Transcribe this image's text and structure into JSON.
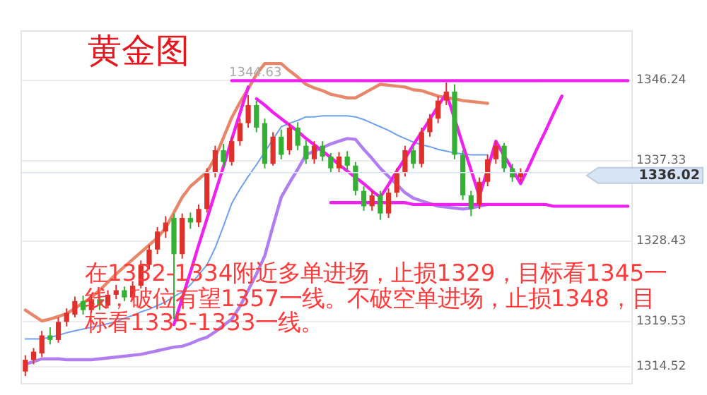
{
  "chart_data": {
    "type": "candlestick",
    "title": "黄金图",
    "categories": [
      null,
      null,
      null,
      null,
      null,
      null,
      null,
      null,
      null,
      null,
      null,
      null,
      null,
      null,
      null,
      null,
      null,
      null,
      null,
      null,
      null,
      null,
      null,
      null,
      null,
      null,
      null,
      null,
      null,
      null,
      null,
      null,
      null,
      null,
      null,
      null,
      null,
      null,
      null,
      null,
      null,
      null,
      null,
      null,
      null,
      null,
      null,
      null,
      null,
      null,
      null,
      null,
      null,
      null,
      null,
      null,
      null,
      null,
      null,
      null,
      null,
      null,
      null,
      null,
      null,
      null,
      null,
      null,
      null,
      null,
      null,
      null,
      null,
      null
    ],
    "ohlc": [
      [
        1314.0,
        1315.8,
        1313.5,
        1315.3
      ],
      [
        1315.3,
        1316.6,
        1314.8,
        1316.2
      ],
      [
        1316.0,
        1318.5,
        1315.6,
        1318.0
      ],
      [
        1318.0,
        1318.9,
        1317.0,
        1317.5
      ],
      [
        1317.5,
        1320.0,
        1317.2,
        1319.5
      ],
      [
        1319.5,
        1321.0,
        1319.0,
        1320.5
      ],
      [
        1320.3,
        1322.3,
        1320.0,
        1321.8
      ],
      [
        1321.8,
        1322.4,
        1320.3,
        1320.8
      ],
      [
        1320.8,
        1322.5,
        1320.5,
        1322.0
      ],
      [
        1322.0,
        1322.6,
        1320.8,
        1321.3
      ],
      [
        1321.3,
        1323.0,
        1321.0,
        1322.5
      ],
      [
        1322.5,
        1323.6,
        1322.0,
        1323.0
      ],
      [
        1323.0,
        1323.4,
        1321.8,
        1322.2
      ],
      [
        1322.2,
        1324.0,
        1321.9,
        1323.5
      ],
      [
        1323.5,
        1326.3,
        1323.2,
        1325.8
      ],
      [
        1325.8,
        1328.0,
        1325.3,
        1327.5
      ],
      [
        1327.5,
        1330.0,
        1327.0,
        1329.5
      ],
      [
        1329.5,
        1331.2,
        1328.8,
        1330.5
      ],
      [
        1331.0,
        1331.5,
        1319.8,
        1327.0
      ],
      [
        1327.0,
        1331.5,
        1326.5,
        1331.0
      ],
      [
        1331.0,
        1331.6,
        1329.8,
        1330.5
      ],
      [
        1330.5,
        1332.5,
        1330.0,
        1332.0
      ],
      [
        1332.0,
        1336.5,
        1331.6,
        1336.0
      ],
      [
        1336.0,
        1339.0,
        1335.5,
        1338.5
      ],
      [
        1338.5,
        1339.2,
        1336.6,
        1337.2
      ],
      [
        1337.2,
        1340.0,
        1336.8,
        1339.5
      ],
      [
        1339.5,
        1342.0,
        1339.0,
        1341.5
      ],
      [
        1341.5,
        1344.6,
        1341.0,
        1343.5
      ],
      [
        1343.5,
        1344.0,
        1340.5,
        1341.0
      ],
      [
        1341.5,
        1342.0,
        1336.5,
        1337.0
      ],
      [
        1337.0,
        1340.5,
        1336.8,
        1340.0
      ],
      [
        1340.0,
        1340.8,
        1337.5,
        1338.0
      ],
      [
        1338.5,
        1341.5,
        1338.0,
        1341.0
      ],
      [
        1341.0,
        1341.6,
        1338.5,
        1339.0
      ],
      [
        1339.0,
        1339.6,
        1337.0,
        1337.5
      ],
      [
        1337.5,
        1339.5,
        1337.0,
        1339.0
      ],
      [
        1339.0,
        1339.5,
        1337.3,
        1337.8
      ],
      [
        1337.8,
        1338.2,
        1336.0,
        1336.5
      ],
      [
        1336.5,
        1338.3,
        1336.0,
        1337.8
      ],
      [
        1337.8,
        1338.4,
        1336.3,
        1336.8
      ],
      [
        1336.8,
        1337.2,
        1333.5,
        1334.0
      ],
      [
        1334.0,
        1334.5,
        1331.8,
        1332.3
      ],
      [
        1332.3,
        1334.0,
        1331.8,
        1333.5
      ],
      [
        1333.5,
        1334.0,
        1330.8,
        1331.5
      ],
      [
        1331.5,
        1334.3,
        1331.0,
        1333.8
      ],
      [
        1333.8,
        1336.5,
        1333.3,
        1336.0
      ],
      [
        1336.0,
        1339.0,
        1335.6,
        1338.5
      ],
      [
        1338.5,
        1339.0,
        1336.5,
        1337.0
      ],
      [
        1337.0,
        1341.0,
        1336.6,
        1340.5
      ],
      [
        1340.5,
        1342.5,
        1340.0,
        1342.0
      ],
      [
        1342.0,
        1344.5,
        1341.5,
        1344.0
      ],
      [
        1344.0,
        1346.0,
        1343.5,
        1345.0
      ],
      [
        1345.0,
        1345.8,
        1337.5,
        1338.0
      ],
      [
        1338.0,
        1338.5,
        1333.0,
        1333.5
      ],
      [
        1333.5,
        1334.0,
        1331.2,
        1332.0
      ],
      [
        1332.5,
        1335.5,
        1332.0,
        1335.0
      ],
      [
        1335.0,
        1338.0,
        1334.5,
        1337.5
      ],
      [
        1337.5,
        1339.5,
        1337.0,
        1339.0
      ],
      [
        1339.0,
        1339.3,
        1336.0,
        1336.5
      ],
      [
        1336.5,
        1337.0,
        1335.0,
        1335.5
      ],
      [
        1335.5,
        1336.5,
        1335.0,
        1336.0
      ],
      null,
      null,
      null,
      null,
      null,
      null,
      null,
      null,
      null,
      null,
      null,
      null,
      null
    ],
    "colors": [
      "#e0302c",
      "#e0302c",
      "#e0302c",
      "#34b034",
      "#e0302c",
      "#e0302c",
      "#e0302c",
      "#34b034",
      "#e0302c",
      "#34b034",
      "#e0302c",
      "#e0302c",
      "#34b034",
      "#e0302c",
      "#e0302c",
      "#e0302c",
      "#e0302c",
      "#e0302c",
      "#34b034",
      "#e0302c",
      "#34b034",
      "#e0302c",
      "#e0302c",
      "#e0302c",
      "#34b034",
      "#e0302c",
      "#e0302c",
      "#e0302c",
      "#34b034",
      "#34b034",
      "#e0302c",
      "#34b034",
      "#e0302c",
      "#34b034",
      "#34b034",
      "#e0302c",
      "#34b034",
      "#34b034",
      "#e0302c",
      "#34b034",
      "#34b034",
      "#34b034",
      "#e0302c",
      "#34b034",
      "#e0302c",
      "#e0302c",
      "#e0302c",
      "#34b034",
      "#e0302c",
      "#e0302c",
      "#e0302c",
      "#e0302c",
      "#34b034",
      "#34b034",
      "#34b034",
      "#e0302c",
      "#e0302c",
      "#e0302c",
      "#34b034",
      "#34b034",
      "#e0302c",
      null,
      null,
      null,
      null,
      null,
      null,
      null,
      null,
      null,
      null,
      null,
      null,
      null
    ],
    "series": [
      {
        "type": "line",
        "color": "#6fa0f0",
        "values": [
          1317.6,
          1317.6,
          1317.6,
          1317.8,
          1318.0,
          1318.3,
          1318.5,
          1318.7,
          1318.9,
          1319.1,
          1319.3,
          1319.5,
          1319.9,
          1320.2,
          1320.6,
          1320.9,
          1321.3,
          1321.7,
          1322.3,
          1322.8,
          1323.6,
          1324.7,
          1325.8,
          1327.7,
          1330.1,
          1332.6,
          1334.2,
          1335.6,
          1336.9,
          1338.3,
          1339.7,
          1341.1,
          1341.5,
          1341.8,
          1342.2,
          1342.2,
          1342.3,
          1342.3,
          1342.3,
          1342.3,
          1342.2,
          1341.9,
          1341.5,
          1341.1,
          1340.7,
          1340.2,
          1339.8,
          1339.4,
          1339.1,
          1338.9,
          1338.6,
          1338.4,
          1338.2,
          1338.1,
          1338.0,
          1338.0,
          1338.0,
          null,
          null,
          null,
          null,
          null,
          null,
          null,
          null,
          null,
          null,
          null,
          null,
          null,
          null,
          null,
          null,
          null
        ]
      },
      {
        "type": "line",
        "color": "#e8866a",
        "values": [
          1320.8,
          1320.2,
          1319.6,
          1319.8,
          1320.1,
          1320.4,
          1321.0,
          1321.6,
          1322.2,
          1323.0,
          1323.9,
          1324.8,
          1325.6,
          1326.4,
          1327.2,
          1328.0,
          1328.8,
          1329.9,
          1331.6,
          1333.3,
          1334.5,
          1335.3,
          1336.1,
          1337.7,
          1339.9,
          1342.1,
          1343.8,
          1345.3,
          1346.9,
          1348.1,
          1348.1,
          1348.1,
          1347.3,
          1346.6,
          1345.8,
          1345.4,
          1345.1,
          1344.7,
          1344.5,
          1344.3,
          1344.3,
          1344.8,
          1345.3,
          1345.8,
          1345.7,
          1345.6,
          1345.5,
          1345.2,
          1345.1,
          1344.8,
          1344.5,
          1344.3,
          1344.2,
          1344.0,
          1343.9,
          1343.8,
          1343.7,
          null,
          null,
          null,
          null,
          null,
          null,
          null,
          null,
          null,
          null,
          null,
          null,
          null,
          null,
          null,
          null,
          null
        ]
      },
      {
        "type": "line",
        "color": "#b07ef0",
        "values": [
          1314.8,
          1315.1,
          1315.4,
          1315.4,
          1315.4,
          1315.3,
          1315.3,
          1315.3,
          1315.3,
          1315.4,
          1315.5,
          1315.6,
          1315.7,
          1315.8,
          1315.9,
          1316.1,
          1316.3,
          1316.5,
          1316.7,
          1316.8,
          1317.1,
          1317.5,
          1317.8,
          1318.4,
          1319.1,
          1319.8,
          1321.2,
          1323.0,
          1324.8,
          1326.8,
          1330.1,
          1333.3,
          1334.9,
          1336.4,
          1338.0,
          1338.4,
          1338.8,
          1339.2,
          1339.5,
          1339.8,
          1339.7,
          1338.6,
          1337.6,
          1336.5,
          1335.6,
          1334.7,
          1333.8,
          1333.2,
          1332.9,
          1332.6,
          1332.3,
          1332.2,
          1332.1,
          1332.0,
          1332.1,
          1332.3,
          1332.5,
          null,
          null,
          null,
          null,
          null,
          null,
          null,
          null,
          null,
          null,
          null,
          null,
          null,
          null,
          null,
          null,
          null
        ]
      },
      {
        "type": "line",
        "color": "#f020f0",
        "values": [
          null,
          null,
          null,
          null,
          null,
          null,
          null,
          null,
          null,
          null,
          null,
          null,
          null,
          null,
          null,
          null,
          null,
          null,
          1319.2,
          1322.1,
          1325.0,
          1328.0,
          1330.9,
          1333.8,
          1336.7,
          1339.7,
          1342.6,
          1345.5,
          null,
          null,
          null,
          null,
          null,
          null,
          null,
          null,
          null,
          null,
          null,
          null,
          null,
          null,
          null,
          null,
          null,
          null,
          null,
          null,
          null,
          null,
          null,
          null,
          null,
          null,
          null,
          null,
          null,
          null,
          null,
          null,
          null,
          null,
          null,
          null,
          null,
          null,
          null,
          null,
          null,
          null,
          null,
          null,
          null,
          null
        ]
      },
      {
        "type": "line",
        "color": "#f020f0",
        "values": [
          null,
          null,
          null,
          null,
          null,
          null,
          null,
          null,
          null,
          null,
          null,
          null,
          null,
          null,
          null,
          null,
          null,
          null,
          null,
          null,
          null,
          null,
          null,
          null,
          null,
          null,
          null,
          null,
          1344.2,
          1343.5,
          1342.7,
          1342.0,
          1341.3,
          1340.6,
          1339.8,
          1339.1,
          1338.4,
          1337.7,
          1336.9,
          1336.2,
          1335.5,
          1334.8,
          1334.0,
          1333.3,
          1334.7,
          1336.2,
          1337.6,
          1339.1,
          1340.5,
          1341.9,
          1343.4,
          1344.8,
          1342.0,
          1339.1,
          1336.3,
          1333.4,
          1336.4,
          1339.5,
          1337.9,
          1336.4,
          1334.8,
          1336.7,
          1338.7,
          1340.6,
          1342.6,
          1344.5,
          null,
          null,
          null,
          null,
          null,
          null,
          null,
          null
        ]
      },
      {
        "type": "line",
        "color": "#f020f0",
        "values": [
          null,
          null,
          null,
          null,
          null,
          null,
          null,
          null,
          null,
          null,
          null,
          null,
          null,
          null,
          null,
          null,
          null,
          null,
          null,
          null,
          null,
          null,
          null,
          null,
          null,
          1346.2,
          1346.2,
          1346.2,
          1346.2,
          1346.2,
          1346.2,
          1346.2,
          1346.2,
          1346.2,
          1346.2,
          1346.2,
          1346.2,
          1346.2,
          1346.2,
          1346.2,
          1346.2,
          1346.2,
          1346.2,
          1346.2,
          1346.2,
          1346.2,
          1346.2,
          1346.2,
          1346.2,
          1346.2,
          1346.2,
          1346.2,
          1346.2,
          1346.2,
          1346.2,
          1346.2,
          1346.2,
          1346.2,
          1346.2,
          1346.2,
          1346.2,
          1346.2,
          1346.2,
          1346.2,
          1346.2,
          1346.2,
          1346.2,
          1346.2,
          1346.2,
          1346.2,
          1346.2,
          1346.2,
          1346.2,
          1346.2
        ]
      },
      {
        "type": "line",
        "color": "#f020f0",
        "values": [
          null,
          null,
          null,
          null,
          null,
          null,
          null,
          null,
          null,
          null,
          null,
          null,
          null,
          null,
          null,
          null,
          null,
          null,
          null,
          null,
          null,
          null,
          null,
          null,
          null,
          null,
          null,
          null,
          null,
          null,
          null,
          null,
          null,
          null,
          null,
          null,
          null,
          1332.7,
          1332.7,
          1332.7,
          1332.7,
          1332.7,
          1332.7,
          1332.7,
          1332.7,
          1332.7,
          1332.7,
          1332.5,
          1332.5,
          1332.5,
          1332.5,
          1332.5,
          1332.5,
          1332.5,
          1332.5,
          1332.5,
          1332.5,
          1332.5,
          1332.5,
          1332.5,
          1332.5,
          1332.5,
          1332.5,
          1332.5,
          1332.3,
          1332.3,
          1332.3,
          1332.3,
          1332.3,
          1332.3,
          1332.3,
          1332.3,
          1332.3,
          1332.3
        ]
      }
    ],
    "ylim": [
      1312.65,
      1351.7
    ],
    "yticks": [
      1346.24,
      1337.33,
      1328.43,
      1319.53,
      1314.52
    ],
    "tick_labels": "y",
    "grid": "y",
    "ref_lines": [
      {
        "axis": "y",
        "value": 1336.02,
        "label": "1336.02",
        "color": "#d6e4f5"
      }
    ],
    "annotations": [
      "1344.63",
      "在1332-1334附近多单进场，止损1329，目标看1345一线，破位有望1357一线。不破空单进场，止损1348，目标看1335-1333一线。"
    ]
  }
}
